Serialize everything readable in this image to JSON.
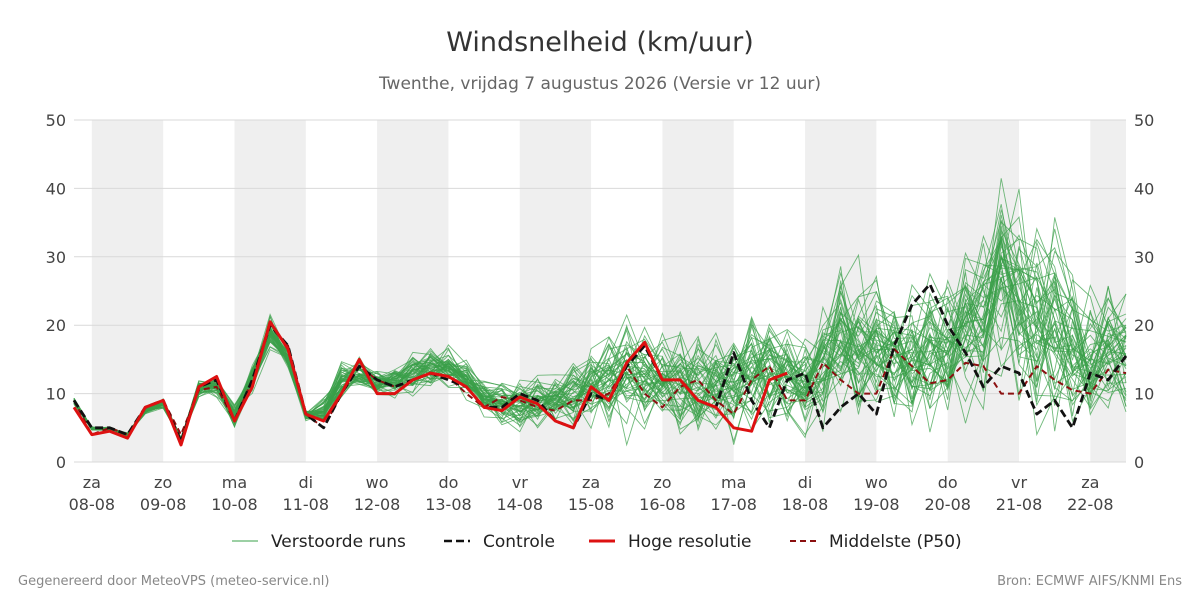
{
  "header": {
    "title": "Windsnelheid (km/uur)",
    "subtitle": "Twenthe, vrijdag  7 augustus 2026 (Versie vr 12 uur)"
  },
  "footer": {
    "left": "Gegenereerd door MeteoVPS (meteo-service.nl)",
    "right": "Bron: ECMWF AIFS/KNMI Ens"
  },
  "colors": {
    "ensemble": "#3aa04a",
    "control": "#111111",
    "high_res": "#dd1111",
    "median": "#8b1010",
    "weekend_band": "#efefef",
    "grid": "#d9d9d9"
  },
  "chart_data": {
    "type": "line",
    "title": "Windsnelheid (km/uur)",
    "ylim": [
      0,
      50
    ],
    "y_ticks": [
      0,
      10,
      20,
      30,
      40,
      50
    ],
    "x_range_days": [
      -0.25,
      14.5
    ],
    "x_ticks": [
      {
        "day": "za",
        "date": "08-08"
      },
      {
        "day": "zo",
        "date": "09-08"
      },
      {
        "day": "ma",
        "date": "10-08"
      },
      {
        "day": "di",
        "date": "11-08"
      },
      {
        "day": "wo",
        "date": "12-08"
      },
      {
        "day": "do",
        "date": "13-08"
      },
      {
        "day": "vr",
        "date": "14-08"
      },
      {
        "day": "za",
        "date": "15-08"
      },
      {
        "day": "zo",
        "date": "16-08"
      },
      {
        "day": "ma",
        "date": "17-08"
      },
      {
        "day": "di",
        "date": "18-08"
      },
      {
        "day": "wo",
        "date": "19-08"
      },
      {
        "day": "do",
        "date": "20-08"
      },
      {
        "day": "vr",
        "date": "21-08"
      },
      {
        "day": "za",
        "date": "22-08"
      }
    ],
    "shaded_days": [
      [
        0,
        1
      ],
      [
        2,
        3
      ],
      [
        4,
        5
      ],
      [
        6,
        7
      ],
      [
        8,
        9
      ],
      [
        10,
        11
      ],
      [
        12,
        13
      ],
      [
        14,
        14.5
      ]
    ],
    "legend": {
      "placement": "bottom",
      "entries": [
        {
          "name": "Verstoorde runs",
          "style": "thin-green"
        },
        {
          "name": "Controle",
          "style": "dashed-black"
        },
        {
          "name": "Hoge resolutie",
          "style": "solid-red"
        },
        {
          "name": "Middelste (P50)",
          "style": "dashed-darkred"
        }
      ]
    },
    "ensemble_members": 50,
    "ensemble_spread": [
      [
        -0.25,
        2,
        15
      ],
      [
        0,
        1,
        7
      ],
      [
        0.5,
        2,
        6
      ],
      [
        1,
        3,
        11
      ],
      [
        1.25,
        2,
        6
      ],
      [
        1.5,
        4,
        16
      ],
      [
        2,
        1,
        15
      ],
      [
        2.5,
        10,
        25
      ],
      [
        3,
        4,
        9
      ],
      [
        3.5,
        7,
        20
      ],
      [
        4,
        6,
        16
      ],
      [
        4.5,
        7,
        20
      ],
      [
        5,
        9,
        21
      ],
      [
        5.5,
        5,
        15
      ],
      [
        6,
        1,
        15
      ],
      [
        6.5,
        4,
        16
      ],
      [
        7,
        2,
        21
      ],
      [
        7.5,
        1,
        24
      ],
      [
        8,
        3,
        20
      ],
      [
        8.5,
        1,
        22
      ],
      [
        9,
        1,
        22
      ],
      [
        9.5,
        2,
        25
      ],
      [
        10,
        1,
        22
      ],
      [
        10.5,
        2,
        33
      ],
      [
        11,
        3,
        30
      ],
      [
        11.5,
        1,
        30
      ],
      [
        12,
        2,
        30
      ],
      [
        12.5,
        5,
        39
      ],
      [
        12.75,
        10,
        46
      ],
      [
        13,
        3,
        43
      ],
      [
        13.5,
        1,
        40
      ],
      [
        14,
        2,
        27
      ],
      [
        14.5,
        3,
        30
      ]
    ],
    "series": [
      {
        "name": "Controle",
        "x": [
          -0.25,
          0,
          0.25,
          0.5,
          0.75,
          1,
          1.25,
          1.5,
          1.75,
          2,
          2.25,
          2.5,
          2.75,
          3,
          3.25,
          3.5,
          3.75,
          4,
          4.25,
          4.5,
          4.75,
          5,
          5.25,
          5.5,
          5.75,
          6,
          6.25,
          6.5,
          6.75,
          7,
          7.25,
          7.5,
          7.75,
          8,
          8.25,
          8.5,
          8.75,
          9,
          9.25,
          9.5,
          9.75,
          10,
          10.25,
          10.5,
          10.75,
          11,
          11.25,
          11.5,
          11.75,
          12,
          12.25,
          12.5,
          12.75,
          13,
          13.25,
          13.5,
          13.75,
          14,
          14.25,
          14.5
        ],
        "values": [
          9,
          5,
          5,
          4,
          8,
          9,
          3,
          11,
          12,
          6,
          12,
          20,
          17,
          7,
          5,
          10,
          14,
          12,
          11,
          12,
          13,
          12,
          11,
          8,
          8,
          10,
          9,
          6,
          5,
          10,
          9,
          14,
          17,
          12,
          12,
          9,
          8,
          16,
          9,
          5,
          12,
          13,
          5,
          8,
          10,
          7,
          17,
          23,
          26,
          20,
          16,
          11,
          14,
          13,
          7,
          9,
          5,
          13,
          12,
          15.5
        ]
      },
      {
        "name": "Hoge resolutie",
        "x": [
          -0.25,
          0,
          0.25,
          0.5,
          0.75,
          1,
          1.25,
          1.5,
          1.75,
          2,
          2.25,
          2.5,
          2.75,
          3,
          3.25,
          3.5,
          3.75,
          4,
          4.25,
          4.5,
          4.75,
          5,
          5.25,
          5.5,
          5.75,
          6,
          6.25,
          6.5,
          6.75,
          7,
          7.25,
          7.5,
          7.75,
          8,
          8.25,
          8.5,
          8.75,
          9,
          9.25,
          9.5,
          9.75
        ],
        "values": [
          8,
          4,
          4.5,
          3.5,
          8,
          9,
          2.5,
          11,
          12.5,
          6,
          11,
          20.5,
          16.5,
          7,
          6,
          10,
          15,
          10,
          10,
          12,
          13,
          12.5,
          11,
          8,
          7.5,
          9.5,
          8.5,
          6,
          5,
          11,
          9,
          14.5,
          17.5,
          12,
          12,
          9,
          8,
          5,
          4.5,
          12,
          13
        ]
      },
      {
        "name": "Middelste (P50)",
        "x": [
          -0.25,
          0,
          0.25,
          0.5,
          0.75,
          1,
          1.25,
          1.5,
          1.75,
          2,
          2.25,
          2.5,
          2.75,
          3,
          3.25,
          3.5,
          3.75,
          4,
          4.25,
          4.5,
          4.75,
          5,
          5.25,
          5.5,
          5.75,
          6,
          6.25,
          6.5,
          6.75,
          7,
          7.25,
          7.5,
          7.75,
          8,
          8.25,
          8.5,
          8.75,
          9,
          9.25,
          9.5,
          9.75,
          10,
          10.25,
          10.5,
          10.75,
          11,
          11.25,
          11.5,
          11.75,
          12,
          12.25,
          12.5,
          12.75,
          13,
          13.25,
          13.5,
          13.75,
          14,
          14.25,
          14.5
        ],
        "values": [
          9,
          4,
          5,
          4,
          8,
          9,
          4,
          10.5,
          11,
          6,
          12,
          20,
          17,
          7,
          5,
          10,
          14,
          12,
          11,
          12,
          13,
          12.5,
          10,
          8,
          9.5,
          9,
          8,
          7.5,
          9,
          9,
          10,
          14,
          10,
          8,
          11,
          12,
          9,
          7,
          12,
          14,
          9,
          9,
          14.5,
          12,
          10,
          10,
          16.5,
          14,
          11.5,
          12,
          14.5,
          14,
          10,
          10,
          14,
          12,
          10.5,
          10,
          13.5,
          13
        ]
      }
    ]
  }
}
